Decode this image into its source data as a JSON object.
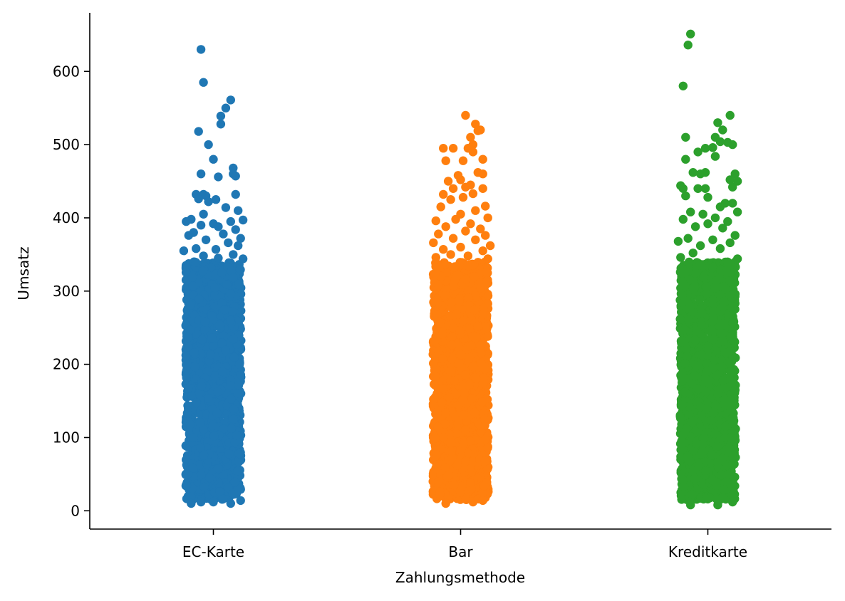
{
  "chart_data": {
    "type": "scatter",
    "title": "",
    "xlabel": "Zahlungsmethode",
    "ylabel": "Umsatz",
    "categories": [
      "EC-Karte",
      "Bar",
      "Kreditkarte"
    ],
    "ylim": [
      -25,
      680
    ],
    "yticks": [
      0,
      100,
      200,
      300,
      400,
      500,
      600
    ],
    "grid": false,
    "legend": "none",
    "dense_band": [
      15,
      340
    ],
    "series": [
      {
        "category": "EC-Karte",
        "color": "#1f77b4",
        "points": [
          [
            -0.05,
            630
          ],
          [
            -0.04,
            585
          ],
          [
            0.07,
            561
          ],
          [
            0.05,
            550
          ],
          [
            0.03,
            539
          ],
          [
            0.03,
            528
          ],
          [
            -0.06,
            518
          ],
          [
            -0.02,
            500
          ],
          [
            0.0,
            480
          ],
          [
            0.08,
            468
          ],
          [
            0.08,
            460
          ],
          [
            0.09,
            457
          ],
          [
            -0.05,
            460
          ],
          [
            0.02,
            456
          ],
          [
            -0.07,
            432
          ],
          [
            -0.04,
            432
          ],
          [
            -0.03,
            430
          ],
          [
            -0.06,
            426
          ],
          [
            0.01,
            425
          ],
          [
            0.09,
            432
          ],
          [
            -0.02,
            422
          ],
          [
            0.05,
            414
          ],
          [
            0.1,
            410
          ],
          [
            -0.04,
            405
          ],
          [
            -0.09,
            398
          ],
          [
            0.12,
            397
          ],
          [
            0.07,
            395
          ],
          [
            0.0,
            392
          ],
          [
            -0.11,
            395
          ],
          [
            -0.05,
            390
          ],
          [
            0.02,
            388
          ],
          [
            -0.08,
            380
          ],
          [
            0.09,
            384
          ],
          [
            0.04,
            378
          ],
          [
            -0.1,
            376
          ],
          [
            0.11,
            372
          ],
          [
            -0.03,
            370
          ],
          [
            0.06,
            366
          ],
          [
            0.1,
            362
          ],
          [
            -0.07,
            358
          ],
          [
            0.01,
            357
          ],
          [
            -0.12,
            355
          ],
          [
            0.08,
            350
          ],
          [
            -0.04,
            348
          ],
          [
            0.12,
            344
          ],
          [
            0.02,
            345
          ],
          [
            -0.09,
            10
          ],
          [
            0.07,
            10
          ],
          [
            0.0,
            12
          ],
          [
            -0.05,
            12
          ],
          [
            0.11,
            14
          ]
        ]
      },
      {
        "category": "Bar",
        "color": "#ff7f0e",
        "points": [
          [
            0.02,
            540
          ],
          [
            0.06,
            528
          ],
          [
            0.08,
            520
          ],
          [
            0.07,
            519
          ],
          [
            0.04,
            510
          ],
          [
            0.05,
            500
          ],
          [
            -0.07,
            495
          ],
          [
            -0.03,
            495
          ],
          [
            0.03,
            495
          ],
          [
            0.05,
            490
          ],
          [
            -0.06,
            478
          ],
          [
            0.01,
            478
          ],
          [
            0.09,
            480
          ],
          [
            0.07,
            462
          ],
          [
            0.09,
            460
          ],
          [
            -0.01,
            458
          ],
          [
            0.0,
            452
          ],
          [
            -0.05,
            450
          ],
          [
            0.04,
            445
          ],
          [
            0.02,
            442
          ],
          [
            0.09,
            440
          ],
          [
            -0.03,
            440
          ],
          [
            -0.07,
            432
          ],
          [
            0.05,
            433
          ],
          [
            0.01,
            428
          ],
          [
            -0.04,
            425
          ],
          [
            -0.08,
            415
          ],
          [
            0.1,
            416
          ],
          [
            0.06,
            410
          ],
          [
            -0.1,
            396
          ],
          [
            0.11,
            400
          ],
          [
            0.0,
            405
          ],
          [
            -0.02,
            398
          ],
          [
            0.04,
            392
          ],
          [
            -0.06,
            388
          ],
          [
            0.08,
            385
          ],
          [
            0.02,
            382
          ],
          [
            -0.09,
            378
          ],
          [
            0.1,
            376
          ],
          [
            -0.03,
            372
          ],
          [
            0.06,
            370
          ],
          [
            -0.11,
            366
          ],
          [
            0.12,
            362
          ],
          [
            0.0,
            360
          ],
          [
            -0.07,
            357
          ],
          [
            0.09,
            355
          ],
          [
            -0.04,
            350
          ],
          [
            0.03,
            348
          ],
          [
            -0.1,
            346
          ],
          [
            0.11,
            344
          ],
          [
            -0.06,
            10
          ],
          [
            0.05,
            12
          ],
          [
            0.09,
            14
          ]
        ]
      },
      {
        "category": "Kreditkarte",
        "color": "#2ca02c",
        "points": [
          [
            -0.07,
            651
          ],
          [
            -0.08,
            636
          ],
          [
            -0.1,
            580
          ],
          [
            0.09,
            540
          ],
          [
            0.04,
            530
          ],
          [
            0.06,
            520
          ],
          [
            -0.09,
            510
          ],
          [
            0.03,
            510
          ],
          [
            0.1,
            500
          ],
          [
            0.05,
            504
          ],
          [
            0.08,
            503
          ],
          [
            -0.01,
            495
          ],
          [
            0.02,
            496
          ],
          [
            -0.04,
            490
          ],
          [
            0.03,
            484
          ],
          [
            -0.09,
            480
          ],
          [
            0.11,
            460
          ],
          [
            -0.06,
            462
          ],
          [
            -0.01,
            462
          ],
          [
            -0.03,
            460
          ],
          [
            0.12,
            450
          ],
          [
            0.09,
            452
          ],
          [
            0.1,
            442
          ],
          [
            -0.11,
            444
          ],
          [
            -0.1,
            440
          ],
          [
            -0.04,
            440
          ],
          [
            -0.01,
            440
          ],
          [
            0.0,
            428
          ],
          [
            -0.09,
            430
          ],
          [
            0.07,
            420
          ],
          [
            0.1,
            420
          ],
          [
            0.05,
            415
          ],
          [
            0.12,
            408
          ],
          [
            -0.07,
            408
          ],
          [
            -0.02,
            405
          ],
          [
            0.03,
            400
          ],
          [
            -0.1,
            398
          ],
          [
            0.08,
            395
          ],
          [
            0.0,
            392
          ],
          [
            -0.05,
            388
          ],
          [
            0.06,
            386
          ],
          [
            0.11,
            376
          ],
          [
            -0.08,
            372
          ],
          [
            0.02,
            370
          ],
          [
            -0.12,
            368
          ],
          [
            0.09,
            366
          ],
          [
            -0.03,
            362
          ],
          [
            0.05,
            358
          ],
          [
            -0.06,
            352
          ],
          [
            0.12,
            344
          ],
          [
            -0.11,
            346
          ],
          [
            -0.07,
            8
          ],
          [
            0.04,
            8
          ],
          [
            0.1,
            12
          ]
        ]
      }
    ]
  }
}
